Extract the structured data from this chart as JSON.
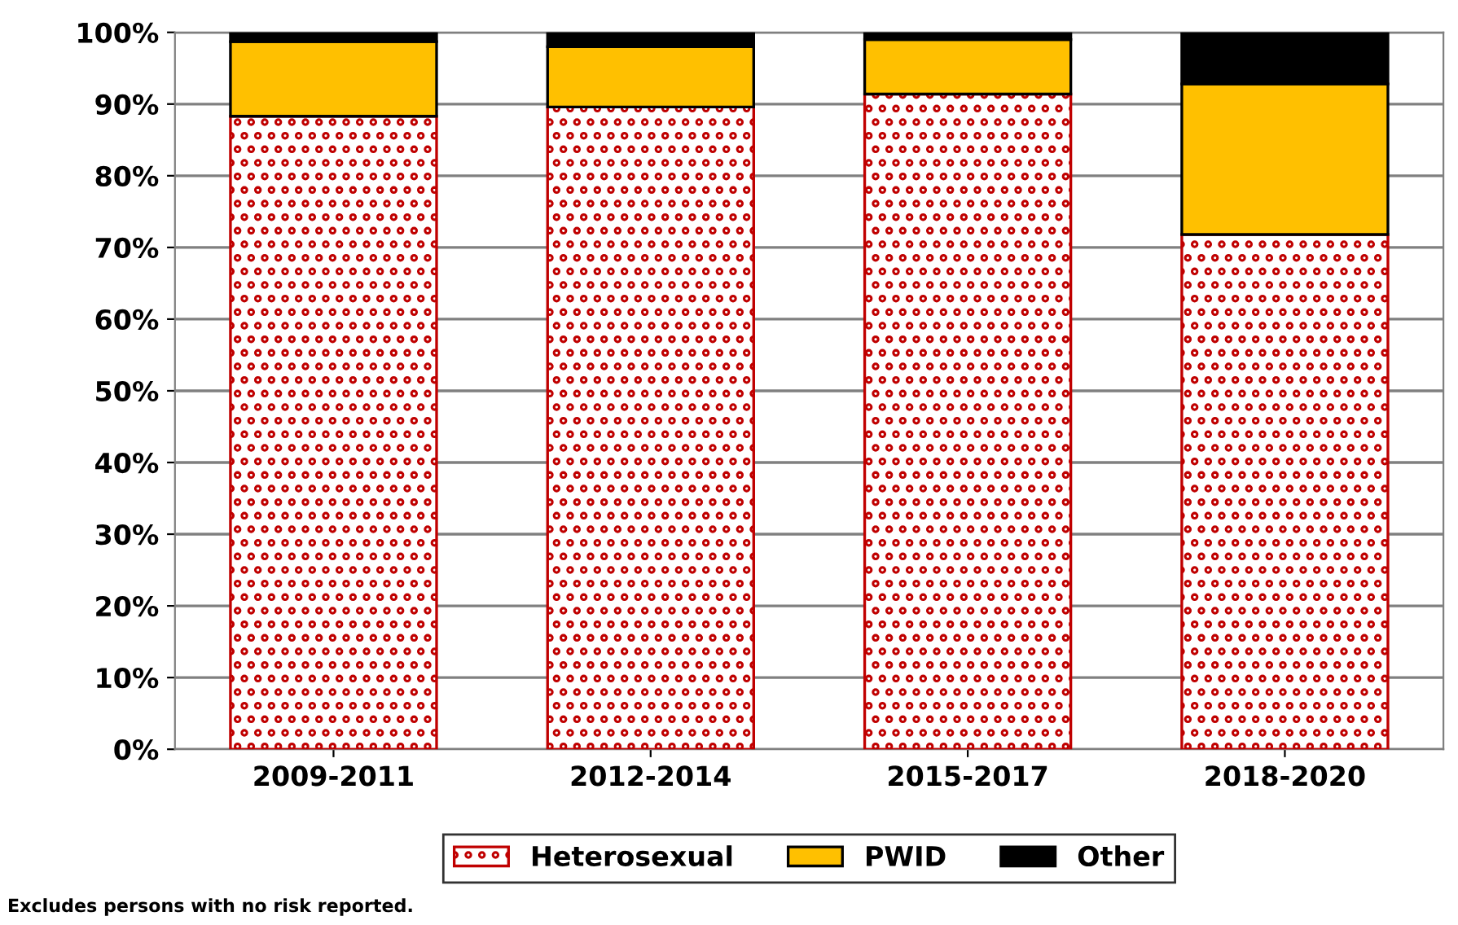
{
  "chart_data": {
    "type": "bar",
    "stacked": true,
    "categories": [
      "2009-2011",
      "2012-2014",
      "2015-2017",
      "2018-2020"
    ],
    "series": [
      {
        "name": "Heterosexual",
        "color": "#c00000",
        "values": [
          88.3,
          89.6,
          91.4,
          71.8
        ]
      },
      {
        "name": "PWID",
        "color": "#ffc000",
        "values": [
          10.4,
          8.4,
          7.6,
          21.0
        ]
      },
      {
        "name": "Other",
        "color": "#000000",
        "values": [
          1.3,
          2.0,
          1.0,
          7.2
        ]
      }
    ],
    "ylim": [
      0,
      100
    ],
    "yticks": [
      {
        "value": 0,
        "label": "0%"
      },
      {
        "value": 10,
        "label": "10%"
      },
      {
        "value": 20,
        "label": "20%"
      },
      {
        "value": 30,
        "label": "30%"
      },
      {
        "value": 40,
        "label": "40%"
      },
      {
        "value": 50,
        "label": "50%"
      },
      {
        "value": 60,
        "label": "60%"
      },
      {
        "value": 70,
        "label": "70%"
      },
      {
        "value": 80,
        "label": "80%"
      },
      {
        "value": 90,
        "label": "90%"
      },
      {
        "value": 100,
        "label": "100%"
      }
    ],
    "grid": "y",
    "legend": "bottom",
    "annotations": [
      "Excludes persons with no risk reported."
    ]
  }
}
